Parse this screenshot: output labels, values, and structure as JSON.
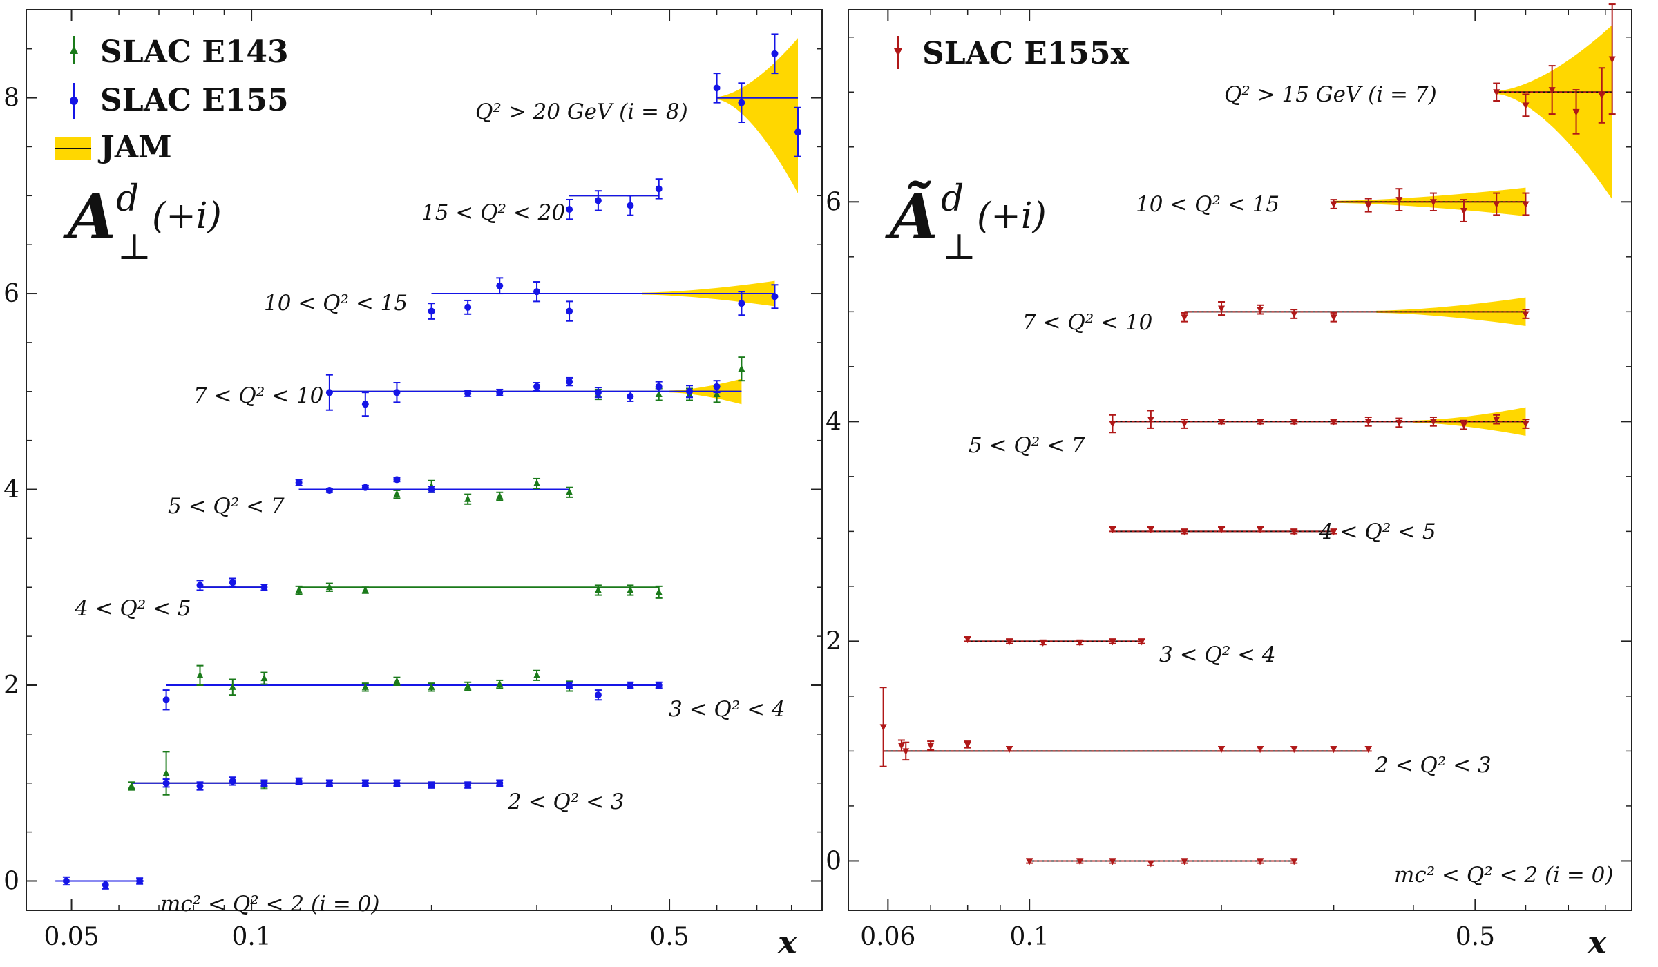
{
  "chart_data": [
    {
      "type": "scatter",
      "panel": "left",
      "ylabel": "A⊥d (+i)",
      "xlabel": "x",
      "xscale": "log",
      "xlim": [
        0.042,
        0.9
      ],
      "ylim": [
        -0.3,
        8.9
      ],
      "xticks": [
        0.05,
        0.1,
        0.5
      ],
      "xtick_labels": [
        "0.05",
        "0.1",
        "0.5"
      ],
      "yticks": [
        0,
        2,
        4,
        6,
        8
      ],
      "ytick_labels": [
        "0",
        "2",
        "4",
        "6",
        "8"
      ],
      "legend": [
        "SLAC E143",
        "SLAC E155",
        "JAM"
      ],
      "legend_position": "top-left",
      "colors": {
        "E143": "#1a7a1a",
        "E155": "#1515e6",
        "JAM_band": "#ffd700",
        "JAM_line": "#111111"
      },
      "bins": [
        {
          "label": "mc² < Q² < 2 (i = 0)",
          "offset": 0,
          "E155": [
            [
              0.049,
              0.0,
              0.04
            ],
            [
              0.057,
              -0.04,
              0.04
            ],
            [
              0.065,
              0.0,
              0.03
            ]
          ],
          "E143": [],
          "theory_range": [
            0.047,
            0.066
          ],
          "theory_color": "#1515e6"
        },
        {
          "label": "2 < Q² < 3",
          "offset": 1,
          "E155": [
            [
              0.072,
              1.0,
              0.04
            ],
            [
              0.082,
              0.97,
              0.04
            ],
            [
              0.093,
              1.02,
              0.04
            ],
            [
              0.105,
              1.0,
              0.03
            ],
            [
              0.12,
              1.02,
              0.03
            ],
            [
              0.135,
              1.0,
              0.03
            ],
            [
              0.155,
              1.0,
              0.03
            ],
            [
              0.175,
              1.0,
              0.03
            ],
            [
              0.2,
              0.98,
              0.03
            ],
            [
              0.23,
              0.98,
              0.03
            ],
            [
              0.26,
              1.0,
              0.03
            ]
          ],
          "E143": [
            [
              0.063,
              0.97,
              0.04
            ],
            [
              0.072,
              1.1,
              0.22
            ],
            [
              0.105,
              0.98,
              0.04
            ]
          ],
          "theory_range": [
            0.063,
            0.26
          ],
          "theory_color": "#1515e6"
        },
        {
          "label": "3 < Q² < 4",
          "offset": 2,
          "E155": [
            [
              0.072,
              1.85,
              0.1
            ],
            [
              0.34,
              2.0,
              0.03
            ],
            [
              0.38,
              1.9,
              0.05
            ],
            [
              0.43,
              2.0,
              0.03
            ],
            [
              0.48,
              2.0,
              0.03
            ]
          ],
          "E143": [
            [
              0.082,
              2.1,
              0.1
            ],
            [
              0.093,
              1.98,
              0.08
            ],
            [
              0.105,
              2.07,
              0.06
            ],
            [
              0.155,
              1.98,
              0.04
            ],
            [
              0.175,
              2.04,
              0.04
            ],
            [
              0.2,
              1.98,
              0.04
            ],
            [
              0.23,
              1.99,
              0.04
            ],
            [
              0.26,
              2.01,
              0.04
            ],
            [
              0.3,
              2.1,
              0.05
            ],
            [
              0.34,
              1.99,
              0.05
            ]
          ],
          "theory_range": [
            0.072,
            0.48
          ],
          "theory_color": "#1515e6"
        },
        {
          "label": "4 < Q² < 5",
          "offset": 3,
          "E155": [
            [
              0.082,
              3.02,
              0.05
            ],
            [
              0.093,
              3.05,
              0.04
            ],
            [
              0.105,
              3.0,
              0.03
            ]
          ],
          "E143": [
            [
              0.12,
              2.97,
              0.04
            ],
            [
              0.135,
              3.0,
              0.04
            ],
            [
              0.155,
              2.97,
              0.03
            ],
            [
              0.38,
              2.97,
              0.05
            ],
            [
              0.43,
              2.97,
              0.05
            ],
            [
              0.48,
              2.95,
              0.06
            ]
          ],
          "theory_range": [
            0.082,
            0.105
          ],
          "theory_color": "#1515e6",
          "theory2_range": [
            0.12,
            0.48
          ],
          "theory2_color": "#1a7a1a"
        },
        {
          "label": "5 < Q² < 7",
          "offset": 4,
          "E155": [
            [
              0.12,
              4.07,
              0.03
            ],
            [
              0.135,
              3.99,
              0.02
            ],
            [
              0.155,
              4.02,
              0.02
            ],
            [
              0.175,
              4.1,
              0.02
            ],
            [
              0.2,
              4.0,
              0.03
            ]
          ],
          "E143": [
            [
              0.175,
              3.95,
              0.04
            ],
            [
              0.2,
              4.03,
              0.06
            ],
            [
              0.23,
              3.9,
              0.05
            ],
            [
              0.26,
              3.93,
              0.04
            ],
            [
              0.3,
              4.06,
              0.05
            ],
            [
              0.34,
              3.97,
              0.05
            ]
          ],
          "theory_range": [
            0.12,
            0.34
          ],
          "theory_color": "#1515e6"
        },
        {
          "label": "7 < Q² < 10",
          "offset": 5,
          "E155": [
            [
              0.135,
              4.99,
              0.18
            ],
            [
              0.155,
              4.87,
              0.12
            ],
            [
              0.175,
              4.99,
              0.1
            ],
            [
              0.23,
              4.98,
              0.03
            ],
            [
              0.26,
              4.99,
              0.03
            ],
            [
              0.3,
              5.05,
              0.04
            ],
            [
              0.34,
              5.1,
              0.04
            ],
            [
              0.38,
              4.99,
              0.05
            ],
            [
              0.43,
              4.95,
              0.05
            ],
            [
              0.48,
              5.05,
              0.05
            ],
            [
              0.54,
              5.0,
              0.06
            ],
            [
              0.6,
              5.05,
              0.06
            ]
          ],
          "E143": [
            [
              0.38,
              4.97,
              0.05
            ],
            [
              0.48,
              4.97,
              0.06
            ],
            [
              0.54,
              4.97,
              0.06
            ],
            [
              0.6,
              4.97,
              0.08
            ],
            [
              0.66,
              5.23,
              0.12
            ]
          ],
          "theory_range": [
            0.135,
            0.66
          ],
          "theory_color": "#1515e6",
          "band_from": 0.5
        },
        {
          "label": "10 < Q² < 15",
          "offset": 6,
          "E155": [
            [
              0.2,
              5.82,
              0.08
            ],
            [
              0.23,
              5.86,
              0.07
            ],
            [
              0.26,
              6.08,
              0.08
            ],
            [
              0.3,
              6.02,
              0.1
            ],
            [
              0.34,
              5.82,
              0.1
            ],
            [
              0.66,
              5.9,
              0.12
            ],
            [
              0.75,
              5.97,
              0.12
            ]
          ],
          "E143": [],
          "theory_range": [
            0.2,
            0.75
          ],
          "theory_color": "#1515e6",
          "band_from": 0.45
        },
        {
          "label": "15 < Q² < 20",
          "offset": 7,
          "E155": [
            [
              0.34,
              6.86,
              0.1
            ],
            [
              0.38,
              6.95,
              0.1
            ],
            [
              0.43,
              6.9,
              0.1
            ],
            [
              0.48,
              7.07,
              0.1
            ]
          ],
          "E143": [],
          "theory_range": [
            0.34,
            0.48
          ],
          "theory_color": "#1515e6"
        },
        {
          "label": "Q² > 20 GeV (i = 8)",
          "offset": 8,
          "E155": [
            [
              0.6,
              8.1,
              0.15
            ],
            [
              0.66,
              7.95,
              0.2
            ],
            [
              0.75,
              8.45,
              0.2
            ],
            [
              0.82,
              7.65,
              0.25
            ]
          ],
          "E143": [],
          "theory_range": [
            0.6,
            0.82
          ],
          "theory_color": "#1515e6",
          "band_from": 0.6,
          "band_wide": true
        }
      ]
    },
    {
      "type": "scatter",
      "panel": "right",
      "ylabel": "Ã⊥d (+i)",
      "xlabel": "x",
      "xscale": "log",
      "xlim": [
        0.052,
        0.88
      ],
      "ylim": [
        -0.45,
        7.75
      ],
      "xticks": [
        0.06,
        0.1,
        0.5
      ],
      "xtick_labels": [
        "0.06",
        "0.1",
        "0.5"
      ],
      "yticks": [
        0,
        2,
        4,
        6
      ],
      "ytick_labels": [
        "0",
        "2",
        "4",
        "6"
      ],
      "legend": [
        "SLAC E155x"
      ],
      "legend_position": "top-left",
      "colors": {
        "E155x": "#b01818",
        "JAM_band": "#ffd700"
      },
      "bins": [
        {
          "label": "mc² < Q² < 2 (i = 0)",
          "offset": 0,
          "E155x": [
            [
              0.1,
              0.0,
              0.02
            ],
            [
              0.12,
              0.0,
              0.02
            ],
            [
              0.135,
              0.0,
              0.02
            ],
            [
              0.155,
              -0.02,
              0.02
            ],
            [
              0.175,
              0.0,
              0.02
            ],
            [
              0.23,
              0.0,
              0.02
            ],
            [
              0.26,
              0.0,
              0.02
            ]
          ],
          "theory_range": [
            0.1,
            0.26
          ]
        },
        {
          "label": "2 < Q² < 3",
          "offset": 1,
          "E155x": [
            [
              0.059,
              1.22,
              0.36
            ],
            [
              0.063,
              1.05,
              0.05
            ],
            [
              0.064,
              1.0,
              0.08
            ],
            [
              0.07,
              1.05,
              0.04
            ],
            [
              0.08,
              1.06,
              0.03
            ],
            [
              0.093,
              1.02,
              0.02
            ],
            [
              0.2,
              1.02,
              0.02
            ],
            [
              0.23,
              1.02,
              0.02
            ],
            [
              0.26,
              1.02,
              0.02
            ],
            [
              0.3,
              1.02,
              0.02
            ],
            [
              0.34,
              1.02,
              0.02
            ]
          ],
          "theory_range": [
            0.059,
            0.34
          ]
        },
        {
          "label": "3 < Q² < 4",
          "offset": 2,
          "E155x": [
            [
              0.08,
              2.02,
              0.02
            ],
            [
              0.093,
              2.0,
              0.02
            ],
            [
              0.105,
              1.99,
              0.02
            ],
            [
              0.12,
              1.99,
              0.02
            ],
            [
              0.135,
              2.0,
              0.02
            ],
            [
              0.15,
              2.0,
              0.02
            ]
          ],
          "theory_range": [
            0.08,
            0.15
          ]
        },
        {
          "label": "4 < Q² < 5",
          "offset": 3,
          "E155x": [
            [
              0.135,
              3.02,
              0.02
            ],
            [
              0.155,
              3.02,
              0.02
            ],
            [
              0.175,
              3.0,
              0.02
            ],
            [
              0.2,
              3.02,
              0.02
            ],
            [
              0.23,
              3.02,
              0.02
            ],
            [
              0.26,
              3.0,
              0.02
            ],
            [
              0.3,
              3.0,
              0.02
            ]
          ],
          "theory_range": [
            0.135,
            0.3
          ]
        },
        {
          "label": "5 < Q² < 7",
          "offset": 4,
          "E155x": [
            [
              0.135,
              3.98,
              0.08
            ],
            [
              0.155,
              4.02,
              0.08
            ],
            [
              0.175,
              3.98,
              0.04
            ],
            [
              0.2,
              4.0,
              0.02
            ],
            [
              0.23,
              4.0,
              0.02
            ],
            [
              0.26,
              4.0,
              0.02
            ],
            [
              0.3,
              4.0,
              0.02
            ],
            [
              0.34,
              4.0,
              0.04
            ],
            [
              0.38,
              3.99,
              0.04
            ],
            [
              0.43,
              4.0,
              0.04
            ],
            [
              0.48,
              3.97,
              0.04
            ],
            [
              0.54,
              4.02,
              0.04
            ],
            [
              0.6,
              3.98,
              0.04
            ]
          ],
          "theory_range": [
            0.135,
            0.6
          ],
          "band_from": 0.4
        },
        {
          "label": "7 < Q² < 10",
          "offset": 5,
          "E155x": [
            [
              0.175,
              4.95,
              0.04
            ],
            [
              0.2,
              5.03,
              0.06
            ],
            [
              0.23,
              5.02,
              0.04
            ],
            [
              0.26,
              4.98,
              0.04
            ],
            [
              0.3,
              4.95,
              0.04
            ],
            [
              0.6,
              4.98,
              0.04
            ]
          ],
          "theory_range": [
            0.175,
            0.6
          ],
          "band_from": 0.35
        },
        {
          "label": "10 < Q² < 15",
          "offset": 6,
          "E155x": [
            [
              0.3,
              5.98,
              0.04
            ],
            [
              0.34,
              5.97,
              0.06
            ],
            [
              0.38,
              6.02,
              0.1
            ],
            [
              0.43,
              6.0,
              0.08
            ],
            [
              0.48,
              5.92,
              0.1
            ],
            [
              0.54,
              5.98,
              0.1
            ],
            [
              0.6,
              5.98,
              0.1
            ]
          ],
          "theory_range": [
            0.3,
            0.6
          ],
          "band_from": 0.3
        },
        {
          "label": "Q² > 15 GeV (i = 7)",
          "offset": 7,
          "E155x": [
            [
              0.54,
              7.0,
              0.08
            ],
            [
              0.6,
              6.88,
              0.1
            ],
            [
              0.66,
              7.02,
              0.22
            ],
            [
              0.72,
              6.82,
              0.2
            ],
            [
              0.79,
              6.97,
              0.25
            ],
            [
              0.82,
              7.3,
              0.5
            ]
          ],
          "theory_range": [
            0.54,
            0.82
          ],
          "band_from": 0.54,
          "band_wide": true
        }
      ]
    }
  ]
}
